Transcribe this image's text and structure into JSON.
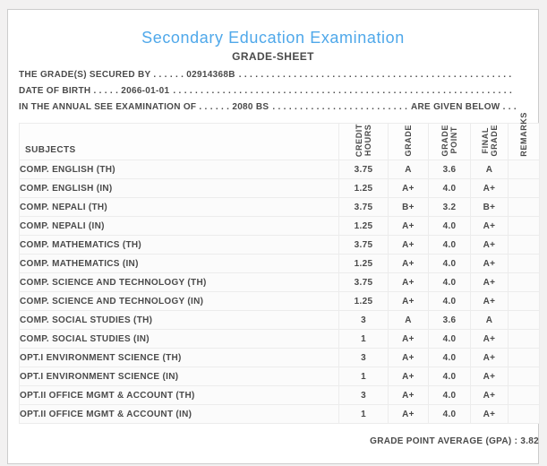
{
  "colors": {
    "accent_blue": "#4FA8EA",
    "text_gray": "#4A4A4A",
    "card_border": "#CCCCCC",
    "table_border": "#ECECEC",
    "row_background": "#FBFBFB",
    "page_background": "#F2F1F1"
  },
  "header": {
    "title": "Secondary Education Examination",
    "subtitle": "GRADE-SHEET"
  },
  "info_lines": [
    {
      "text": "THE GRADE(S) SECURED BY . . . . . . 02914368B",
      "fill": ". . . . . . . . . . . . . . . . . . . . . . . . . . . . . . . . . . . . . . . . . . . . . . . . . . . . . . . . . . . . . . . . . . . . . . . . . . . .",
      "suffix": ""
    },
    {
      "text": "DATE OF BIRTH . . . . . 2066-01-01",
      "fill": ". . . . . . . . . . . . . . . . . . . . . . . . . . . . . . . . . . . . . . . . . . . . . . . . . . . . . . . . . . . . . . . . . . . . . . . . . . . .",
      "suffix": ""
    },
    {
      "text": "IN THE ANNUAL SEE EXAMINATION OF . . . . . . 2080 BS",
      "fill": ". . . . . . . . . . . . . . . . . . . . . . . . . . . . . . . . . . . . . . . . . . . . . . . . . . . . . . . . . . . . . . . . . . . . . . . . . . . .",
      "suffix": "ARE GIVEN BELOW . . ."
    }
  ],
  "table": {
    "columns": [
      {
        "key": "subject",
        "label": "SUBJECTS",
        "rotated": false
      },
      {
        "key": "credit_hours",
        "label": "CREDIT\nHOURS",
        "rotated": true
      },
      {
        "key": "grade",
        "label": "GRADE",
        "rotated": true
      },
      {
        "key": "grade_point",
        "label": "GRADE\nPOINT",
        "rotated": true
      },
      {
        "key": "final_grade",
        "label": "FINAL\nGRADE",
        "rotated": true
      },
      {
        "key": "remarks",
        "label": "REMARKS",
        "rotated": true
      }
    ],
    "rows": [
      [
        "COMP. ENGLISH (TH)",
        "3.75",
        "A",
        "3.6",
        "A",
        ""
      ],
      [
        "COMP. ENGLISH (IN)",
        "1.25",
        "A+",
        "4.0",
        "A+",
        ""
      ],
      [
        "COMP. NEPALI (TH)",
        "3.75",
        "B+",
        "3.2",
        "B+",
        ""
      ],
      [
        "COMP. NEPALI (IN)",
        "1.25",
        "A+",
        "4.0",
        "A+",
        ""
      ],
      [
        "COMP. MATHEMATICS (TH)",
        "3.75",
        "A+",
        "4.0",
        "A+",
        ""
      ],
      [
        "COMP. MATHEMATICS (IN)",
        "1.25",
        "A+",
        "4.0",
        "A+",
        ""
      ],
      [
        "COMP. SCIENCE AND TECHNOLOGY (TH)",
        "3.75",
        "A+",
        "4.0",
        "A+",
        ""
      ],
      [
        "COMP. SCIENCE AND TECHNOLOGY (IN)",
        "1.25",
        "A+",
        "4.0",
        "A+",
        ""
      ],
      [
        "COMP. SOCIAL STUDIES (TH)",
        "3",
        "A",
        "3.6",
        "A",
        ""
      ],
      [
        "COMP. SOCIAL STUDIES (IN)",
        "1",
        "A+",
        "4.0",
        "A+",
        ""
      ],
      [
        "OPT.I ENVIRONMENT SCIENCE (TH)",
        "3",
        "A+",
        "4.0",
        "A+",
        ""
      ],
      [
        "OPT.I ENVIRONMENT SCIENCE (IN)",
        "1",
        "A+",
        "4.0",
        "A+",
        ""
      ],
      [
        "OPT.II OFFICE MGMT & ACCOUNT (TH)",
        "3",
        "A+",
        "4.0",
        "A+",
        ""
      ],
      [
        "OPT.II OFFICE MGMT & ACCOUNT (IN)",
        "1",
        "A+",
        "4.0",
        "A+",
        ""
      ]
    ]
  },
  "footer": {
    "gpa_text": "GRADE POINT AVERAGE (GPA) : 3.82"
  }
}
